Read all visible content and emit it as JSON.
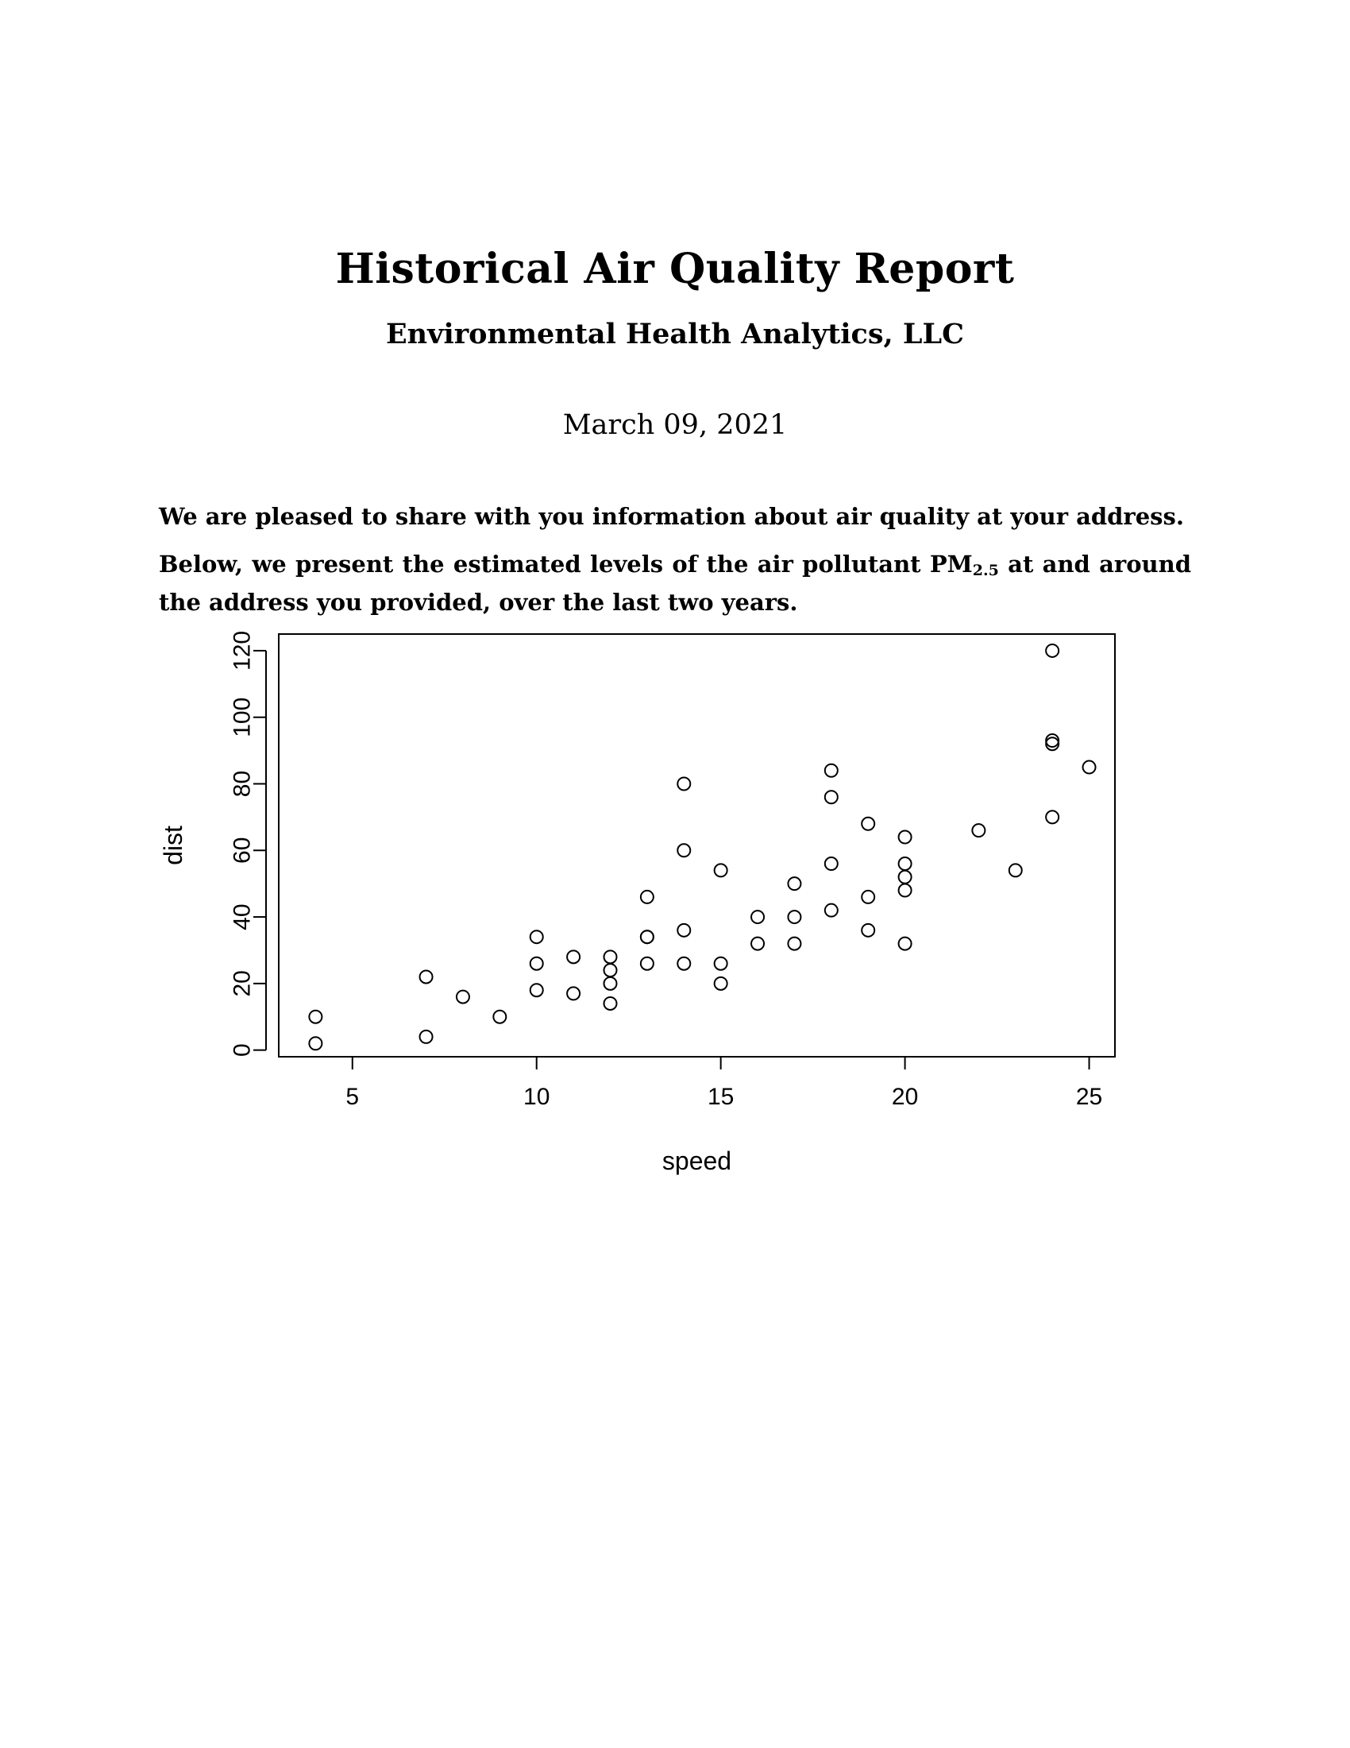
{
  "document": {
    "title": "Historical Air Quality Report",
    "company": "Environmental Health Analytics, LLC",
    "date": "March 09, 2021",
    "paragraph1": "We are pleased to share with you information about air quality at your address.",
    "paragraph2_before": "Below, we present the estimated levels of the air pollutant PM",
    "paragraph2_sub": "2.5",
    "paragraph2_after": " at and around the address you provided, over the last two years."
  },
  "chart_data": {
    "type": "scatter",
    "xlabel": "speed",
    "ylabel": "dist",
    "xlim": [
      3,
      25.7
    ],
    "ylim": [
      -2,
      125
    ],
    "xticks": [
      5,
      10,
      15,
      20,
      25
    ],
    "yticks": [
      0,
      20,
      40,
      60,
      80,
      100,
      120
    ],
    "grid": false,
    "marker": "open-circle",
    "points": [
      {
        "x": 4,
        "y": 2
      },
      {
        "x": 4,
        "y": 10
      },
      {
        "x": 7,
        "y": 4
      },
      {
        "x": 7,
        "y": 22
      },
      {
        "x": 8,
        "y": 16
      },
      {
        "x": 9,
        "y": 10
      },
      {
        "x": 10,
        "y": 18
      },
      {
        "x": 10,
        "y": 26
      },
      {
        "x": 10,
        "y": 34
      },
      {
        "x": 11,
        "y": 17
      },
      {
        "x": 11,
        "y": 28
      },
      {
        "x": 12,
        "y": 14
      },
      {
        "x": 12,
        "y": 20
      },
      {
        "x": 12,
        "y": 24
      },
      {
        "x": 12,
        "y": 28
      },
      {
        "x": 13,
        "y": 26
      },
      {
        "x": 13,
        "y": 34
      },
      {
        "x": 13,
        "y": 34
      },
      {
        "x": 13,
        "y": 46
      },
      {
        "x": 14,
        "y": 26
      },
      {
        "x": 14,
        "y": 36
      },
      {
        "x": 14,
        "y": 60
      },
      {
        "x": 14,
        "y": 80
      },
      {
        "x": 15,
        "y": 20
      },
      {
        "x": 15,
        "y": 26
      },
      {
        "x": 15,
        "y": 54
      },
      {
        "x": 16,
        "y": 32
      },
      {
        "x": 16,
        "y": 40
      },
      {
        "x": 17,
        "y": 32
      },
      {
        "x": 17,
        "y": 40
      },
      {
        "x": 17,
        "y": 50
      },
      {
        "x": 18,
        "y": 42
      },
      {
        "x": 18,
        "y": 56
      },
      {
        "x": 18,
        "y": 76
      },
      {
        "x": 18,
        "y": 84
      },
      {
        "x": 19,
        "y": 36
      },
      {
        "x": 19,
        "y": 46
      },
      {
        "x": 19,
        "y": 68
      },
      {
        "x": 20,
        "y": 32
      },
      {
        "x": 20,
        "y": 48
      },
      {
        "x": 20,
        "y": 52
      },
      {
        "x": 20,
        "y": 56
      },
      {
        "x": 20,
        "y": 64
      },
      {
        "x": 22,
        "y": 66
      },
      {
        "x": 23,
        "y": 54
      },
      {
        "x": 24,
        "y": 70
      },
      {
        "x": 24,
        "y": 92
      },
      {
        "x": 24,
        "y": 93
      },
      {
        "x": 24,
        "y": 120
      },
      {
        "x": 25,
        "y": 85
      }
    ]
  }
}
